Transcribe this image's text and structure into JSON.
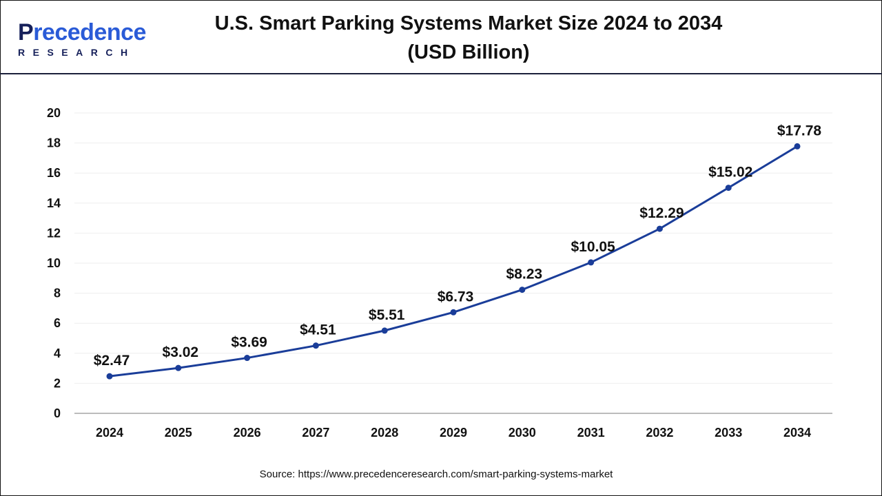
{
  "logo": {
    "text": "Precedence",
    "subtext": "RESEARCH"
  },
  "header": {
    "title_line1": "U.S. Smart Parking Systems Market Size 2024 to 2034",
    "title_line2": "(USD Billion)"
  },
  "source": "Source: https://www.precedenceresearch.com/smart-parking-systems-market",
  "chart_data": {
    "type": "line",
    "title": "U.S. Smart Parking Systems Market Size 2024 to 2034 (USD Billion)",
    "categories": [
      "2024",
      "2025",
      "2026",
      "2027",
      "2028",
      "2029",
      "2030",
      "2031",
      "2032",
      "2033",
      "2034"
    ],
    "values": [
      2.47,
      3.02,
      3.69,
      4.51,
      5.51,
      6.73,
      8.23,
      10.05,
      12.29,
      15.02,
      17.78
    ],
    "labels": [
      "$2.47",
      "$3.02",
      "$3.69",
      "$4.51",
      "$5.51",
      "$6.73",
      "$8.23",
      "$10.05",
      "$12.29",
      "$15.02",
      "$17.78"
    ],
    "ylim": [
      0,
      20
    ],
    "yticks": [
      0,
      2,
      4,
      6,
      8,
      10,
      12,
      14,
      16,
      18,
      20
    ],
    "grid": true,
    "line_color": "#1a3d99"
  }
}
